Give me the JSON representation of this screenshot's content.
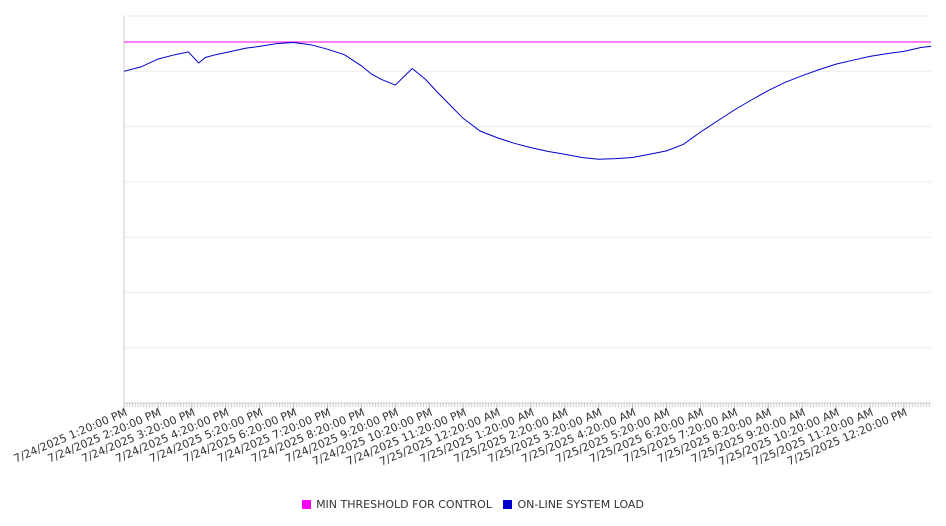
{
  "chart_data": {
    "type": "line",
    "title": "",
    "xlabel": "",
    "ylabel": "",
    "grid": true,
    "legend_position": "bottom",
    "x_tick_labels": [
      "7/24/2025 1:20:00 PM",
      "7/24/2025 2:20:00 PM",
      "7/24/2025 3:20:00 PM",
      "7/24/2025 4:20:00 PM",
      "7/24/2025 5:20:00 PM",
      "7/24/2025 6:20:00 PM",
      "7/24/2025 7:20:00 PM",
      "7/24/2025 8:20:00 PM",
      "7/24/2025 9:20:00 PM",
      "7/24/2025 10:20:00 PM",
      "7/24/2025 11:20:00 PM",
      "7/25/2025 12:20:00 AM",
      "7/25/2025 1:20:00 AM",
      "7/25/2025 2:20:00 AM",
      "7/25/2025 3:20:00 AM",
      "7/25/2025 4:20:00 AM",
      "7/25/2025 5:20:00 AM",
      "7/25/2025 6:20:00 AM",
      "7/25/2025 7:20:00 AM",
      "7/25/2025 8:20:00 AM",
      "7/25/2025 9:20:00 AM",
      "7/25/2025 10:20:00 AM",
      "7/25/2025 11:20:00 AM",
      "7/25/2025 12:20:00 PM"
    ],
    "x_hours_range": [
      0,
      23.8
    ],
    "ylim": [
      0,
      7
    ],
    "y_gridlines": [
      1,
      2,
      3,
      4,
      5,
      6,
      7
    ],
    "series": [
      {
        "name": "MIN THRESHOLD FOR CONTROL",
        "color": "#ff00ff",
        "x_hours": [
          0,
          23.8
        ],
        "values": [
          6.53,
          6.53
        ]
      },
      {
        "name": "ON-LINE SYSTEM LOAD",
        "color": "#0000cc",
        "x_hours": [
          0,
          0.5,
          1,
          1.5,
          1.9,
          2.2,
          2.4,
          2.7,
          3.1,
          3.6,
          4,
          4.5,
          5,
          5.5,
          6,
          6.5,
          7,
          7.3,
          7.6,
          8,
          8.5,
          8.9,
          9.2,
          9.6,
          10,
          10.5,
          11,
          11.5,
          12,
          12.5,
          13,
          13.5,
          14,
          14.5,
          15,
          15.5,
          16,
          16.5,
          17,
          17.5,
          18,
          18.5,
          19,
          19.5,
          20,
          20.5,
          21,
          21.5,
          22,
          22.5,
          23,
          23.5,
          23.8
        ],
        "values": [
          6.0,
          6.08,
          6.22,
          6.3,
          6.35,
          6.15,
          6.25,
          6.3,
          6.35,
          6.42,
          6.45,
          6.5,
          6.52,
          6.48,
          6.4,
          6.3,
          6.1,
          5.95,
          5.85,
          5.75,
          6.05,
          5.85,
          5.65,
          5.4,
          5.15,
          4.92,
          4.8,
          4.7,
          4.62,
          4.55,
          4.5,
          4.44,
          4.41,
          4.42,
          4.44,
          4.5,
          4.56,
          4.68,
          4.9,
          5.1,
          5.3,
          5.48,
          5.65,
          5.8,
          5.92,
          6.03,
          6.13,
          6.2,
          6.27,
          6.32,
          6.36,
          6.43,
          6.45
        ]
      }
    ]
  }
}
